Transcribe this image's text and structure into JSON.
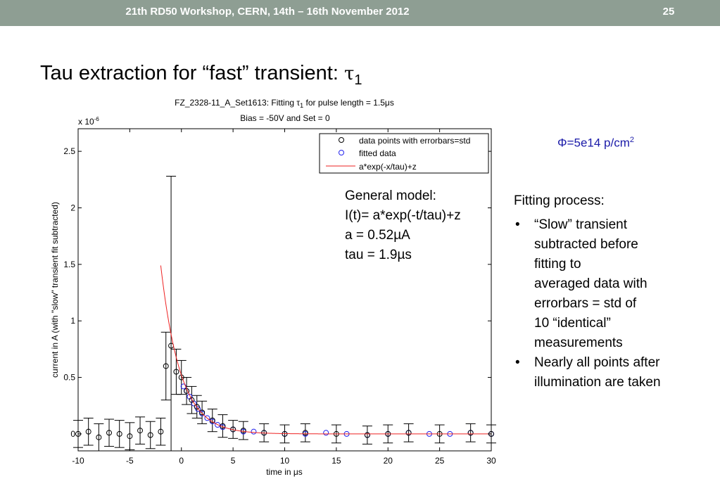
{
  "slide": {
    "header": "21th  RD50 Workshop, CERN, 14th – 16th November 2012",
    "page_number": "25",
    "title_text": "Tau extraction for “fast” transient: ",
    "title_symbol": "τ",
    "title_subscript": "1",
    "fluence": {
      "symbol": "Φ",
      "text": "=5e14 p/cm",
      "superscript": "2"
    },
    "fitting": {
      "heading": "Fitting process:",
      "bullets": [
        {
          "lines": [
            "“Slow” transient",
            "subtracted before",
            "fitting to",
            "averaged data with",
            "errorbars = std of",
            "10 “identical”",
            "measurements"
          ]
        },
        {
          "lines": [
            "Nearly all points after",
            "illumination are taken"
          ]
        }
      ]
    }
  },
  "chart_data": {
    "type": "scatter",
    "title_line1_a": "FZ_2328-11_A_Set1613: Fitting ",
    "title_tau": "τ",
    "title_sub": "1",
    "title_line1_b": " for pulse length = 1.5",
    "title_mu": "μ",
    "title_line1_c": "s",
    "title_line2": "Bias = -50V and Set = 0",
    "xlabel_a": "time in ",
    "xlabel_mu": "μ",
    "xlabel_b": "s",
    "ylabel": "current in A (with \"slow\" transient fit subtracted)",
    "y_multiplier_a": "x 10",
    "y_multiplier_exp": "-6",
    "xlim": [
      -10,
      30
    ],
    "ylim": [
      -0.15,
      2.7
    ],
    "x_ticks": [
      -10,
      -5,
      0,
      5,
      10,
      15,
      20,
      25,
      30
    ],
    "x_tick_labels": [
      "-10",
      "-5",
      "0",
      "5",
      "10",
      "15",
      "20",
      "25",
      "30"
    ],
    "y_ticks": [
      0,
      0.5,
      1,
      1.5,
      2,
      2.5
    ],
    "y_tick_labels": [
      "0",
      "0.5",
      "1",
      "1.5",
      "2",
      "2.5"
    ],
    "legend": {
      "placement": "top-right",
      "entries": [
        "data points with errorbars=std",
        "fitted data",
        "a*exp(-x/tau)+z"
      ]
    },
    "model": {
      "lines": [
        "General model:",
        "I(t)= a*exp(-t/tau)+z",
        "a = 0.52µA",
        "tau = 1.9µs"
      ],
      "a": 0.52,
      "tau": 1.9,
      "z": 0,
      "t0": 0
    },
    "series": [
      {
        "name": "data points with errorbars=std",
        "marker": "circle",
        "color": "#000000",
        "x": [
          -10,
          -9,
          -8,
          -7,
          -6,
          -5,
          -4,
          -3,
          -2,
          -1.5,
          -1,
          -0.5,
          0,
          0.5,
          1,
          1.5,
          2,
          3,
          4,
          5,
          6,
          8,
          10,
          12,
          15,
          18,
          20,
          22,
          25,
          28,
          30
        ],
        "y": [
          0,
          0.02,
          -0.03,
          0.01,
          0,
          -0.02,
          0.03,
          -0.01,
          0.02,
          0.6,
          0.78,
          0.55,
          0.5,
          0.38,
          0.3,
          0.24,
          0.19,
          0.12,
          0.07,
          0.04,
          0.03,
          0.01,
          0.0,
          0.01,
          0.0,
          -0.01,
          0.0,
          0.01,
          0.0,
          0.01,
          0.0
        ],
        "err": [
          0.12,
          0.12,
          0.12,
          0.12,
          0.12,
          0.12,
          0.12,
          0.12,
          0.12,
          0.3,
          1.5,
          0.2,
          0.15,
          0.12,
          0.12,
          0.1,
          0.1,
          0.1,
          0.1,
          0.08,
          0.08,
          0.08,
          0.08,
          0.08,
          0.08,
          0.08,
          0.08,
          0.08,
          0.08,
          0.08,
          0.08
        ]
      },
      {
        "name": "fitted data",
        "marker": "circle",
        "color": "#2222ee",
        "x": [
          0.2,
          0.5,
          0.8,
          1.2,
          1.6,
          2,
          2.5,
          3,
          3.5,
          4,
          5,
          6,
          7,
          8,
          10,
          12,
          14,
          16,
          18,
          20,
          22,
          24,
          26,
          28,
          30
        ],
        "y": [
          0.42,
          0.38,
          0.33,
          0.27,
          0.22,
          0.18,
          0.14,
          0.11,
          0.08,
          0.06,
          0.04,
          0.02,
          0.02,
          0.01,
          0.0,
          0.0,
          0.01,
          0.0,
          -0.01,
          0.0,
          0.01,
          0.0,
          0.0,
          0.01,
          0.0
        ]
      },
      {
        "name": "a*exp(-x/tau)+z",
        "line": true,
        "color": "#ee2222"
      }
    ]
  }
}
